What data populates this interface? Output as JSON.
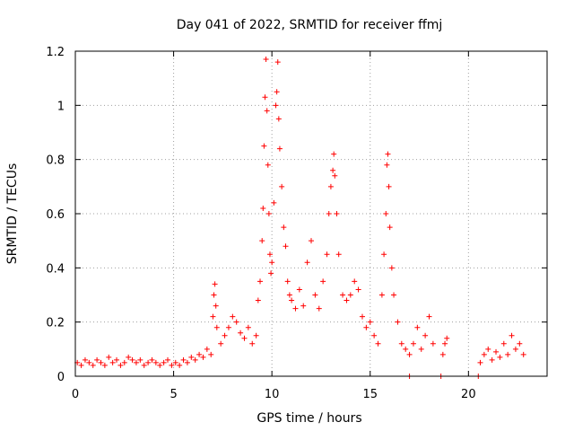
{
  "chart_data": {
    "type": "scatter",
    "title": "Day 041 of 2022, SRMTID for receiver ffmj",
    "xlabel": "GPS time / hours",
    "ylabel": "SRMTID / TECUs",
    "xlim": [
      0,
      24
    ],
    "ylim": [
      0,
      1.2
    ],
    "xticks": [
      0,
      5,
      10,
      15,
      20
    ],
    "xtick_labels": [
      "0",
      "5",
      "10",
      "15",
      "20"
    ],
    "yticks": [
      0,
      0.2,
      0.4,
      0.6,
      0.8,
      1,
      1.2
    ],
    "ytick_labels": [
      "0",
      "0.2",
      "0.4",
      "0.6",
      "0.8",
      "1",
      "1.2"
    ],
    "grid": true,
    "marker": "+",
    "color": "#ff0000",
    "series": [
      {
        "name": "SRMTID",
        "points": [
          [
            0.1,
            0.05
          ],
          [
            0.3,
            0.04
          ],
          [
            0.5,
            0.06
          ],
          [
            0.7,
            0.05
          ],
          [
            0.9,
            0.04
          ],
          [
            1.1,
            0.06
          ],
          [
            1.3,
            0.05
          ],
          [
            1.5,
            0.04
          ],
          [
            1.7,
            0.07
          ],
          [
            1.9,
            0.05
          ],
          [
            2.1,
            0.06
          ],
          [
            2.3,
            0.04
          ],
          [
            2.5,
            0.05
          ],
          [
            2.7,
            0.07
          ],
          [
            2.9,
            0.06
          ],
          [
            3.1,
            0.05
          ],
          [
            3.3,
            0.06
          ],
          [
            3.5,
            0.04
          ],
          [
            3.7,
            0.05
          ],
          [
            3.9,
            0.06
          ],
          [
            4.1,
            0.05
          ],
          [
            4.3,
            0.04
          ],
          [
            4.5,
            0.05
          ],
          [
            4.7,
            0.06
          ],
          [
            4.9,
            0.04
          ],
          [
            5.1,
            0.05
          ],
          [
            5.3,
            0.04
          ],
          [
            5.5,
            0.06
          ],
          [
            5.7,
            0.05
          ],
          [
            5.9,
            0.07
          ],
          [
            6.1,
            0.06
          ],
          [
            6.3,
            0.08
          ],
          [
            6.5,
            0.07
          ],
          [
            6.7,
            0.1
          ],
          [
            6.9,
            0.08
          ],
          [
            7.0,
            0.22
          ],
          [
            7.05,
            0.3
          ],
          [
            7.1,
            0.34
          ],
          [
            7.15,
            0.26
          ],
          [
            7.2,
            0.18
          ],
          [
            7.4,
            0.12
          ],
          [
            7.6,
            0.15
          ],
          [
            7.8,
            0.18
          ],
          [
            8.0,
            0.22
          ],
          [
            8.2,
            0.2
          ],
          [
            8.4,
            0.16
          ],
          [
            8.6,
            0.14
          ],
          [
            8.8,
            0.18
          ],
          [
            9.0,
            0.12
          ],
          [
            9.2,
            0.15
          ],
          [
            9.3,
            0.28
          ],
          [
            9.4,
            0.35
          ],
          [
            9.5,
            0.5
          ],
          [
            9.55,
            0.62
          ],
          [
            9.6,
            0.85
          ],
          [
            9.65,
            1.03
          ],
          [
            9.7,
            1.17
          ],
          [
            9.75,
            0.98
          ],
          [
            9.8,
            0.78
          ],
          [
            9.85,
            0.6
          ],
          [
            9.9,
            0.45
          ],
          [
            9.95,
            0.38
          ],
          [
            10.0,
            0.42
          ],
          [
            10.1,
            0.64
          ],
          [
            10.2,
            1.0
          ],
          [
            10.25,
            1.05
          ],
          [
            10.3,
            1.16
          ],
          [
            10.35,
            0.95
          ],
          [
            10.4,
            0.84
          ],
          [
            10.5,
            0.7
          ],
          [
            10.6,
            0.55
          ],
          [
            10.7,
            0.48
          ],
          [
            10.8,
            0.35
          ],
          [
            10.9,
            0.3
          ],
          [
            11.0,
            0.28
          ],
          [
            11.2,
            0.25
          ],
          [
            11.4,
            0.32
          ],
          [
            11.6,
            0.26
          ],
          [
            11.8,
            0.42
          ],
          [
            12.0,
            0.5
          ],
          [
            12.2,
            0.3
          ],
          [
            12.4,
            0.25
          ],
          [
            12.6,
            0.35
          ],
          [
            12.8,
            0.45
          ],
          [
            12.9,
            0.6
          ],
          [
            13.0,
            0.7
          ],
          [
            13.1,
            0.76
          ],
          [
            13.15,
            0.82
          ],
          [
            13.2,
            0.74
          ],
          [
            13.3,
            0.6
          ],
          [
            13.4,
            0.45
          ],
          [
            13.6,
            0.3
          ],
          [
            13.8,
            0.28
          ],
          [
            14.0,
            0.3
          ],
          [
            14.2,
            0.35
          ],
          [
            14.4,
            0.32
          ],
          [
            14.6,
            0.22
          ],
          [
            14.8,
            0.18
          ],
          [
            15.0,
            0.2
          ],
          [
            15.2,
            0.15
          ],
          [
            15.4,
            0.12
          ],
          [
            15.6,
            0.3
          ],
          [
            15.7,
            0.45
          ],
          [
            15.8,
            0.6
          ],
          [
            15.85,
            0.78
          ],
          [
            15.9,
            0.82
          ],
          [
            15.95,
            0.7
          ],
          [
            16.0,
            0.55
          ],
          [
            16.1,
            0.4
          ],
          [
            16.2,
            0.3
          ],
          [
            16.4,
            0.2
          ],
          [
            16.6,
            0.12
          ],
          [
            16.8,
            0.1
          ],
          [
            17.0,
            0.08
          ],
          [
            17.2,
            0.12
          ],
          [
            17.4,
            0.18
          ],
          [
            17.6,
            0.1
          ],
          [
            17.8,
            0.15
          ],
          [
            18.0,
            0.22
          ],
          [
            18.2,
            0.12
          ],
          [
            18.6,
            0.0
          ],
          [
            18.7,
            0.08
          ],
          [
            18.8,
            0.12
          ],
          [
            18.9,
            0.14
          ],
          [
            17.0,
            0.0
          ],
          [
            20.5,
            0.0
          ],
          [
            20.6,
            0.05
          ],
          [
            20.8,
            0.08
          ],
          [
            21.0,
            0.1
          ],
          [
            21.2,
            0.06
          ],
          [
            21.4,
            0.09
          ],
          [
            21.6,
            0.07
          ],
          [
            21.8,
            0.12
          ],
          [
            22.0,
            0.08
          ],
          [
            22.2,
            0.15
          ],
          [
            22.4,
            0.1
          ],
          [
            22.6,
            0.12
          ],
          [
            22.8,
            0.08
          ]
        ]
      }
    ]
  }
}
